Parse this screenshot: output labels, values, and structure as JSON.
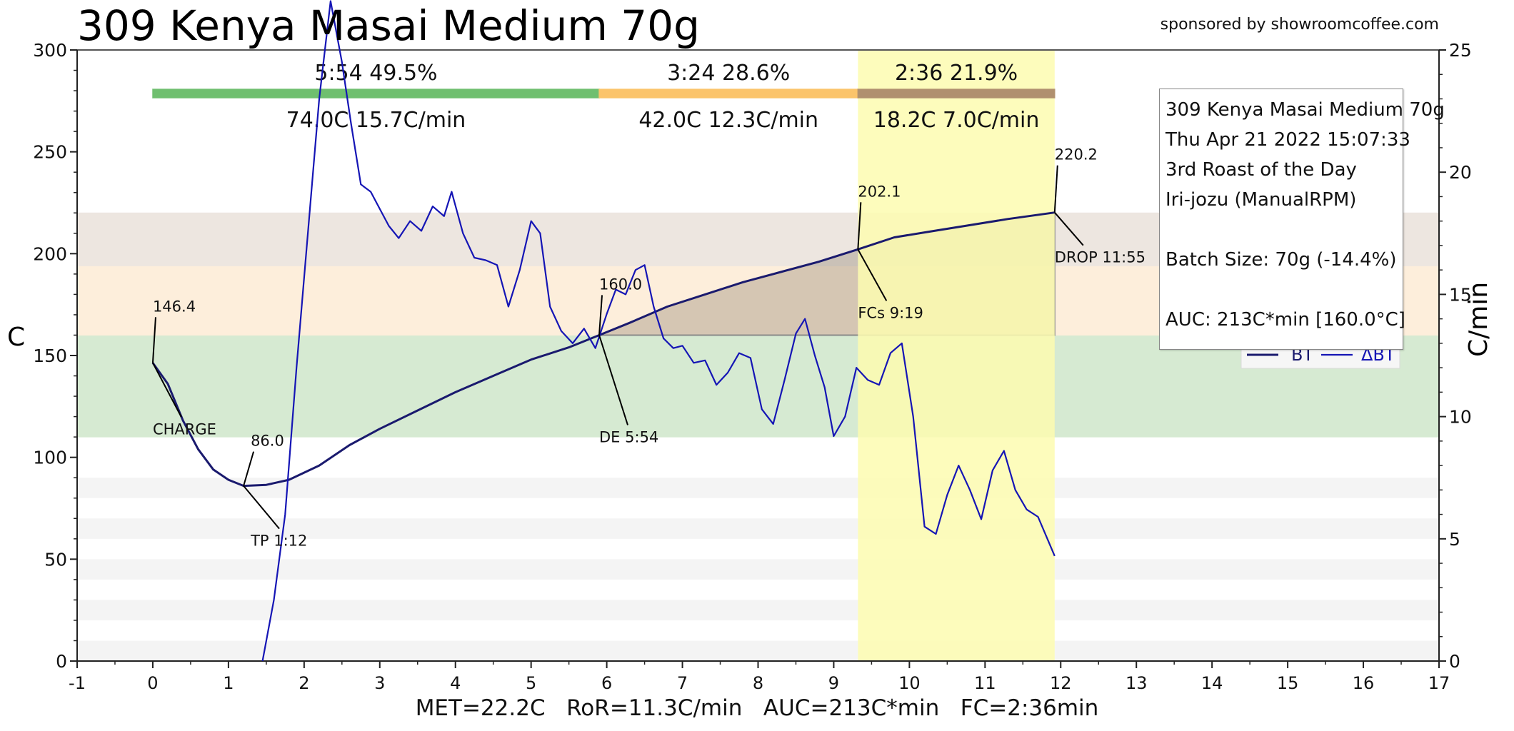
{
  "header": {
    "title": "309 Kenya Masai Medium 70g",
    "sponsor": "sponsored by showroomcoffee.com"
  },
  "info_box": {
    "line1": "309 Kenya Masai Medium 70g",
    "line2": "Thu Apr 21 2022 15:07:33",
    "line3": "3rd Roast of the Day",
    "line4": "Iri-jozu (ManualRPM)",
    "line5": "Batch Size: 70g (-14.4%)",
    "line6": "AUC: 213C*min [160.0°C]"
  },
  "footer": {
    "stats": "MET=22.2C   RoR=11.3C/min   AUC=213C*min   FC=2:36min"
  },
  "colors": {
    "bt_line": "#1a1a6e",
    "ror_line": "#1515b5",
    "drying": "#57b557",
    "maillard": "#f6b94a",
    "development": "#a98b6e",
    "fc_highlight": "#fdfcb0"
  },
  "chart_data": {
    "type": "line",
    "xlabel": "",
    "ylabel": "C",
    "y2label": "C/min",
    "xlim": [
      -1,
      17
    ],
    "ylim": [
      0,
      300
    ],
    "y2lim": [
      0,
      25
    ],
    "x_ticks": [
      -1,
      0,
      1,
      2,
      3,
      4,
      5,
      6,
      7,
      8,
      9,
      10,
      11,
      12,
      13,
      14,
      15,
      16,
      17
    ],
    "y_ticks": [
      0,
      50,
      100,
      150,
      200,
      250,
      300
    ],
    "y2_ticks": [
      0,
      5,
      10,
      15,
      20,
      25
    ],
    "bands": [
      {
        "phase": "drying",
        "y_from": 110,
        "y_to": 160,
        "color": "#d6ead2"
      },
      {
        "phase": "maillard",
        "y_from": 160,
        "y_to": 194,
        "color": "#fdeedb"
      },
      {
        "phase": "development",
        "y_from": 194,
        "y_to": 220,
        "color": "#ede6e0"
      }
    ],
    "grey_stripes": [
      [
        0,
        10
      ],
      [
        20,
        30
      ],
      [
        40,
        50
      ],
      [
        60,
        70
      ],
      [
        80,
        90
      ]
    ],
    "fc_highlight": {
      "x_from": 9.32,
      "x_to": 11.92
    },
    "phase_bar": [
      {
        "x_from": 0,
        "x_to": 5.9,
        "color": "#6fbf6f",
        "time": "5:54",
        "pct": "49.5%",
        "temp": "74.0C",
        "ror": "15.7C/min"
      },
      {
        "x_from": 5.9,
        "x_to": 9.32,
        "color": "#fbc46b",
        "time": "3:24",
        "pct": "28.6%",
        "temp": "42.0C",
        "ror": "12.3C/min"
      },
      {
        "x_from": 9.32,
        "x_to": 11.92,
        "color": "#b0906f",
        "time": "2:36",
        "pct": "21.9%",
        "temp": "18.2C",
        "ror": "7.0C/min"
      }
    ],
    "series": [
      {
        "name": "BT",
        "axis": "left",
        "x": [
          0,
          0.2,
          0.4,
          0.6,
          0.8,
          1.0,
          1.2,
          1.5,
          1.8,
          2.2,
          2.6,
          3.0,
          3.5,
          4.0,
          4.5,
          5.0,
          5.5,
          5.9,
          6.3,
          6.8,
          7.3,
          7.8,
          8.3,
          8.8,
          9.32,
          9.8,
          10.3,
          10.8,
          11.3,
          11.92
        ],
        "values": [
          146.4,
          136,
          118,
          104,
          94,
          89,
          86.0,
          86.5,
          89,
          96,
          106,
          114,
          123,
          132,
          140,
          148,
          154,
          160,
          166,
          174,
          180,
          186,
          191,
          196,
          202.1,
          208,
          211,
          214,
          217,
          220.2
        ]
      },
      {
        "name": "ΔBT",
        "axis": "right",
        "x": [
          1.45,
          1.6,
          1.75,
          1.9,
          2.05,
          2.2,
          2.35,
          2.5,
          2.62,
          2.75,
          2.88,
          3.0,
          3.12,
          3.25,
          3.4,
          3.55,
          3.7,
          3.85,
          3.95,
          4.1,
          4.25,
          4.4,
          4.55,
          4.7,
          4.85,
          5.0,
          5.12,
          5.25,
          5.4,
          5.55,
          5.7,
          5.85,
          6.0,
          6.12,
          6.25,
          6.38,
          6.5,
          6.62,
          6.75,
          6.88,
          7.0,
          7.15,
          7.3,
          7.45,
          7.6,
          7.75,
          7.9,
          8.05,
          8.2,
          8.35,
          8.5,
          8.62,
          8.75,
          8.88,
          9.0,
          9.15,
          9.3,
          9.45,
          9.6,
          9.75,
          9.9,
          10.05,
          10.2,
          10.35,
          10.5,
          10.65,
          10.8,
          10.95,
          11.1,
          11.25,
          11.4,
          11.55,
          11.7,
          11.92
        ],
        "values": [
          0,
          2.5,
          6,
          12,
          17.5,
          23,
          27,
          24.5,
          22,
          19.5,
          19.2,
          18.5,
          17.8,
          17.3,
          18.0,
          17.6,
          18.6,
          18.2,
          19.2,
          17.5,
          16.5,
          16.4,
          16.2,
          14.5,
          16.0,
          18.0,
          17.5,
          14.5,
          13.5,
          13.0,
          13.6,
          12.8,
          14.2,
          15.2,
          15.0,
          16.0,
          16.2,
          14.5,
          13.2,
          12.8,
          12.9,
          12.2,
          12.3,
          11.3,
          11.8,
          12.6,
          12.4,
          10.3,
          9.7,
          11.5,
          13.4,
          14.0,
          12.5,
          11.2,
          9.2,
          10.0,
          12.0,
          11.5,
          11.3,
          12.6,
          13.0,
          10.0,
          5.5,
          5.2,
          6.8,
          8.0,
          7.0,
          5.8,
          7.8,
          8.6,
          7.0,
          6.2,
          5.9,
          4.3
        ]
      }
    ],
    "event_labels": [
      {
        "x": 0,
        "y": 146.4,
        "value": "146.4",
        "event": "CHARGE"
      },
      {
        "x": 1.2,
        "y": 86.0,
        "value": "86.0",
        "event": "TP 1:12"
      },
      {
        "x": 5.9,
        "y": 160.0,
        "value": "160.0",
        "event": "DE 5:54"
      },
      {
        "x": 9.32,
        "y": 202.1,
        "value": "202.1",
        "event": "FCs 9:19"
      },
      {
        "x": 11.92,
        "y": 220.2,
        "value": "220.2",
        "event": "DROP 11:55"
      }
    ],
    "legend": {
      "placement": "right",
      "entries": [
        "BT",
        "ΔBT"
      ]
    },
    "auc_fill": {
      "y_base": 160.0,
      "x_from": 5.9,
      "x_to": 11.92
    }
  }
}
